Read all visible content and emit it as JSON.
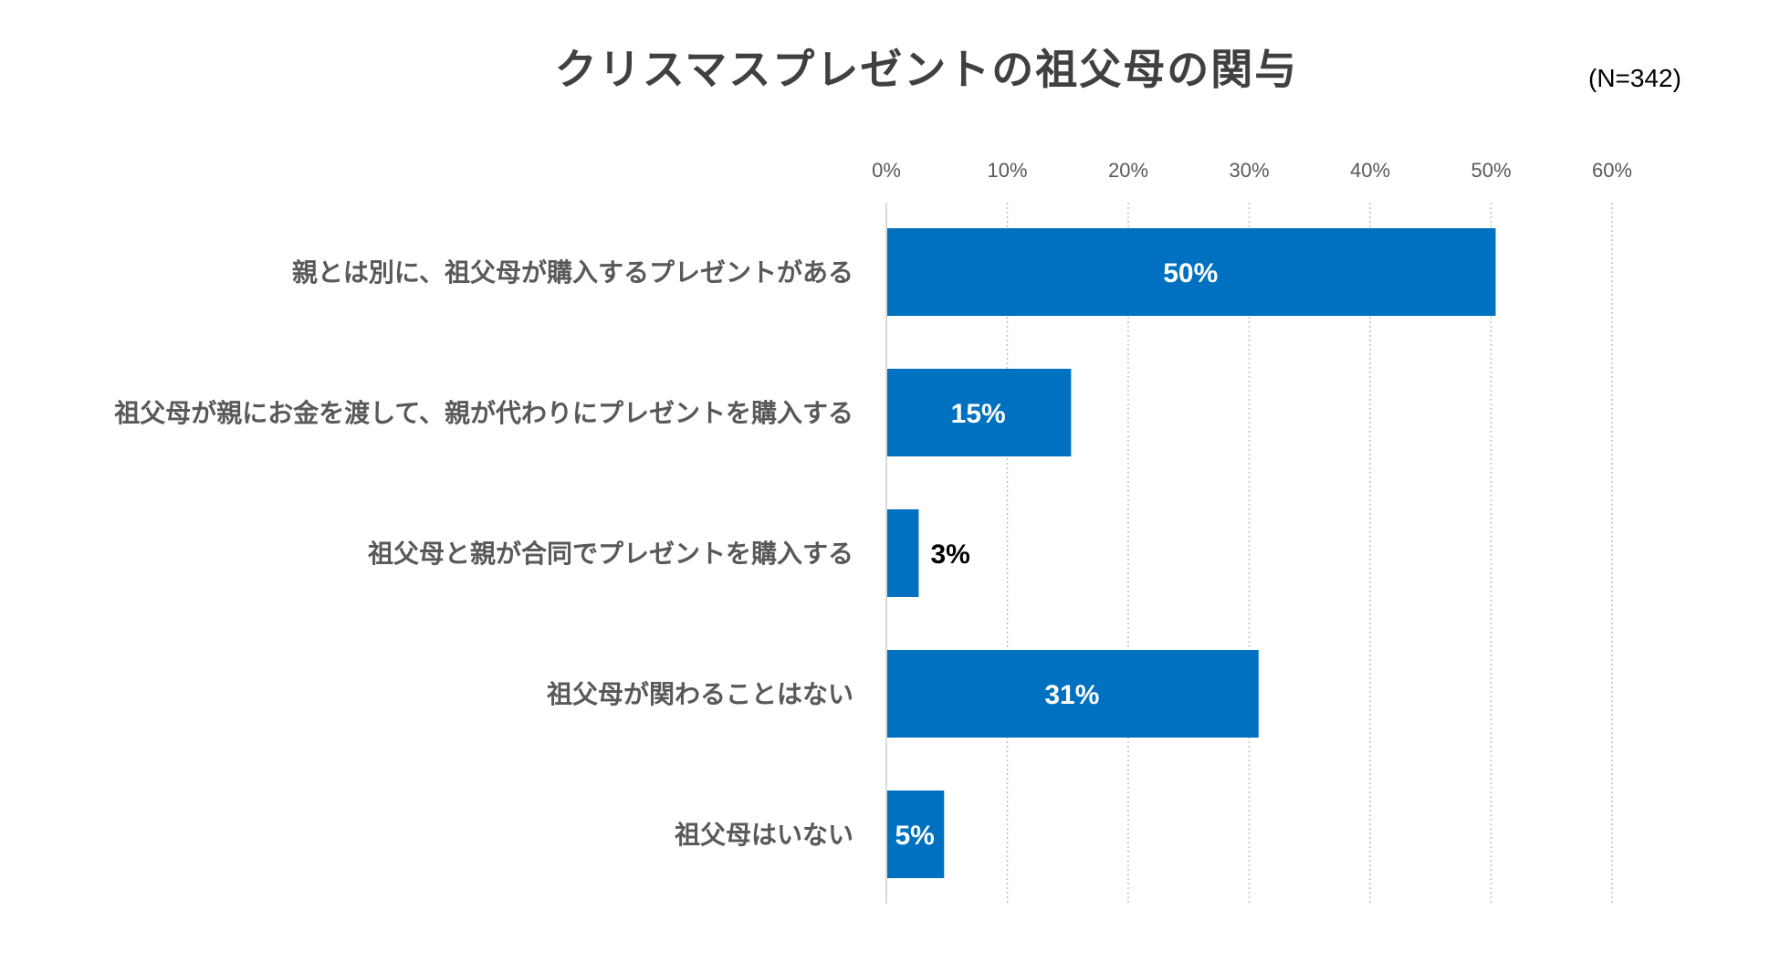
{
  "chart_data": {
    "type": "bar",
    "orientation": "horizontal",
    "title": "クリスマスプレゼントの祖父母の関与",
    "note": "(N=342)",
    "categories": [
      "親とは別に、祖父母が購入するプレゼントがある",
      "祖父母が親にお金を渡して、親が代わりにプレゼントを購入する",
      "祖父母と親が合同でプレゼントを購入する",
      "祖父母が関わることはない",
      "祖父母はいない"
    ],
    "values": [
      50.3,
      15.2,
      2.6,
      30.7,
      4.7
    ],
    "data_labels": [
      "50%",
      "15%",
      "3%",
      "31%",
      "5%"
    ],
    "x_ticks": [
      "0%",
      "10%",
      "20%",
      "30%",
      "40%",
      "50%",
      "60%"
    ],
    "xlim": [
      0,
      60
    ],
    "xaxis_position": "top",
    "grid": true,
    "legend": "none",
    "colors": {
      "bar": "#0070C0",
      "label_inside": "#ffffff",
      "label_outside": "#000000",
      "grid": "#BFBFBF",
      "axis": "#D9D9D9"
    }
  }
}
